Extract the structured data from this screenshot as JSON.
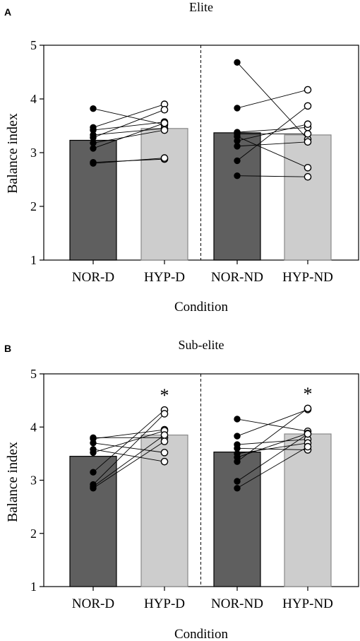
{
  "chart_data": [
    {
      "panel_label": "A",
      "type": "bar",
      "title": "Elite",
      "xlabel": "Condition",
      "ylabel": "Balance index",
      "ylim": [
        1,
        5
      ],
      "yticks": [
        "1",
        "2",
        "3",
        "4",
        "5"
      ],
      "categories": [
        "NOR-D",
        "HYP-D",
        "NOR-ND",
        "HYP-ND"
      ],
      "values": [
        3.23,
        3.45,
        3.37,
        3.33
      ],
      "bar_colors": [
        "#5f5f5f",
        "#cdcdcd",
        "#5f5f5f",
        "#cdcdcd"
      ],
      "pairs": [
        {
          "from": "NOR-D",
          "to": "HYP-D",
          "values_from": [
            3.82,
            3.47,
            3.42,
            3.33,
            3.28,
            3.18,
            3.08,
            2.82,
            2.8
          ],
          "values_to": [
            3.52,
            3.9,
            3.57,
            3.45,
            3.8,
            3.42,
            3.55,
            2.88,
            2.9
          ]
        },
        {
          "from": "NOR-ND",
          "to": "HYP-ND",
          "values_from": [
            4.68,
            3.83,
            3.38,
            3.35,
            3.3,
            3.22,
            3.12,
            2.85,
            2.57
          ],
          "values_to": [
            3.25,
            4.17,
            3.47,
            3.35,
            2.72,
            3.53,
            3.2,
            3.87,
            2.55
          ]
        }
      ],
      "significance": []
    },
    {
      "panel_label": "B",
      "type": "bar",
      "title": "Sub-elite",
      "xlabel": "Condition",
      "ylabel": "Balance index",
      "ylim": [
        1,
        5
      ],
      "yticks": [
        "1",
        "2",
        "3",
        "4",
        "5"
      ],
      "categories": [
        "NOR-D",
        "HYP-D",
        "NOR-ND",
        "HYP-ND"
      ],
      "values": [
        3.45,
        3.85,
        3.53,
        3.87
      ],
      "bar_colors": [
        "#5f5f5f",
        "#cdcdcd",
        "#5f5f5f",
        "#cdcdcd"
      ],
      "pairs": [
        {
          "from": "NOR-D",
          "to": "HYP-D",
          "values_from": [
            3.8,
            3.78,
            3.7,
            3.58,
            3.52,
            3.15,
            2.92,
            2.88,
            2.85
          ],
          "values_to": [
            3.8,
            3.95,
            3.52,
            3.35,
            3.93,
            4.32,
            4.25,
            3.85,
            3.73
          ]
        },
        {
          "from": "NOR-ND",
          "to": "HYP-ND",
          "values_from": [
            4.15,
            3.83,
            3.67,
            3.6,
            3.5,
            3.43,
            3.35,
            2.98,
            2.85
          ],
          "values_to": [
            3.92,
            4.33,
            3.77,
            3.57,
            3.7,
            3.88,
            4.35,
            3.87,
            3.63
          ]
        }
      ],
      "significance": [
        {
          "category": "HYP-D",
          "label": "*"
        },
        {
          "category": "HYP-ND",
          "label": "*"
        }
      ]
    }
  ]
}
